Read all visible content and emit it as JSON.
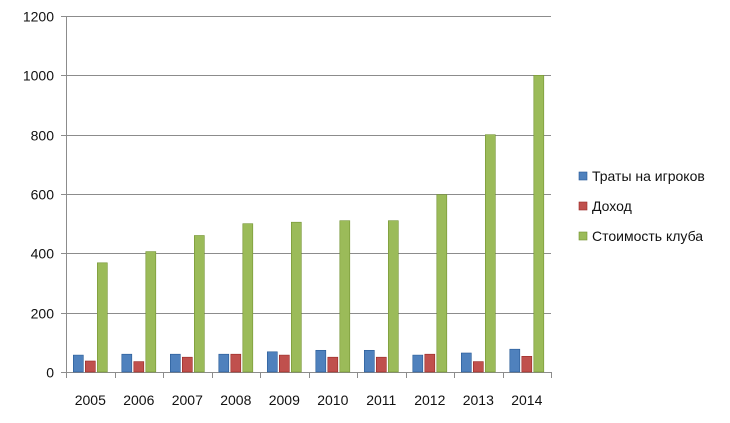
{
  "chart_data": {
    "type": "bar",
    "title": "",
    "xlabel": "",
    "ylabel": "",
    "categories": [
      "2005",
      "2006",
      "2007",
      "2008",
      "2009",
      "2010",
      "2011",
      "2012",
      "2013",
      "2014"
    ],
    "series": [
      {
        "name": "Траты на игроков",
        "color": "#4F81BD",
        "values": [
          57,
          60,
          60,
          60,
          68,
          73,
          73,
          57,
          64,
          77
        ]
      },
      {
        "name": "Доход",
        "color": "#C0504D",
        "values": [
          37,
          35,
          50,
          60,
          57,
          50,
          50,
          60,
          35,
          53
        ]
      },
      {
        "name": "Стоимость клуба",
        "color": "#9BBB59",
        "values": [
          368,
          406,
          460,
          500,
          505,
          510,
          510,
          598,
          800,
          1000
        ]
      }
    ],
    "ylim": [
      0,
      1200
    ],
    "yticks": [
      0,
      200,
      400,
      600,
      800,
      1000,
      1200
    ],
    "grid": true,
    "legend_position": "right"
  }
}
